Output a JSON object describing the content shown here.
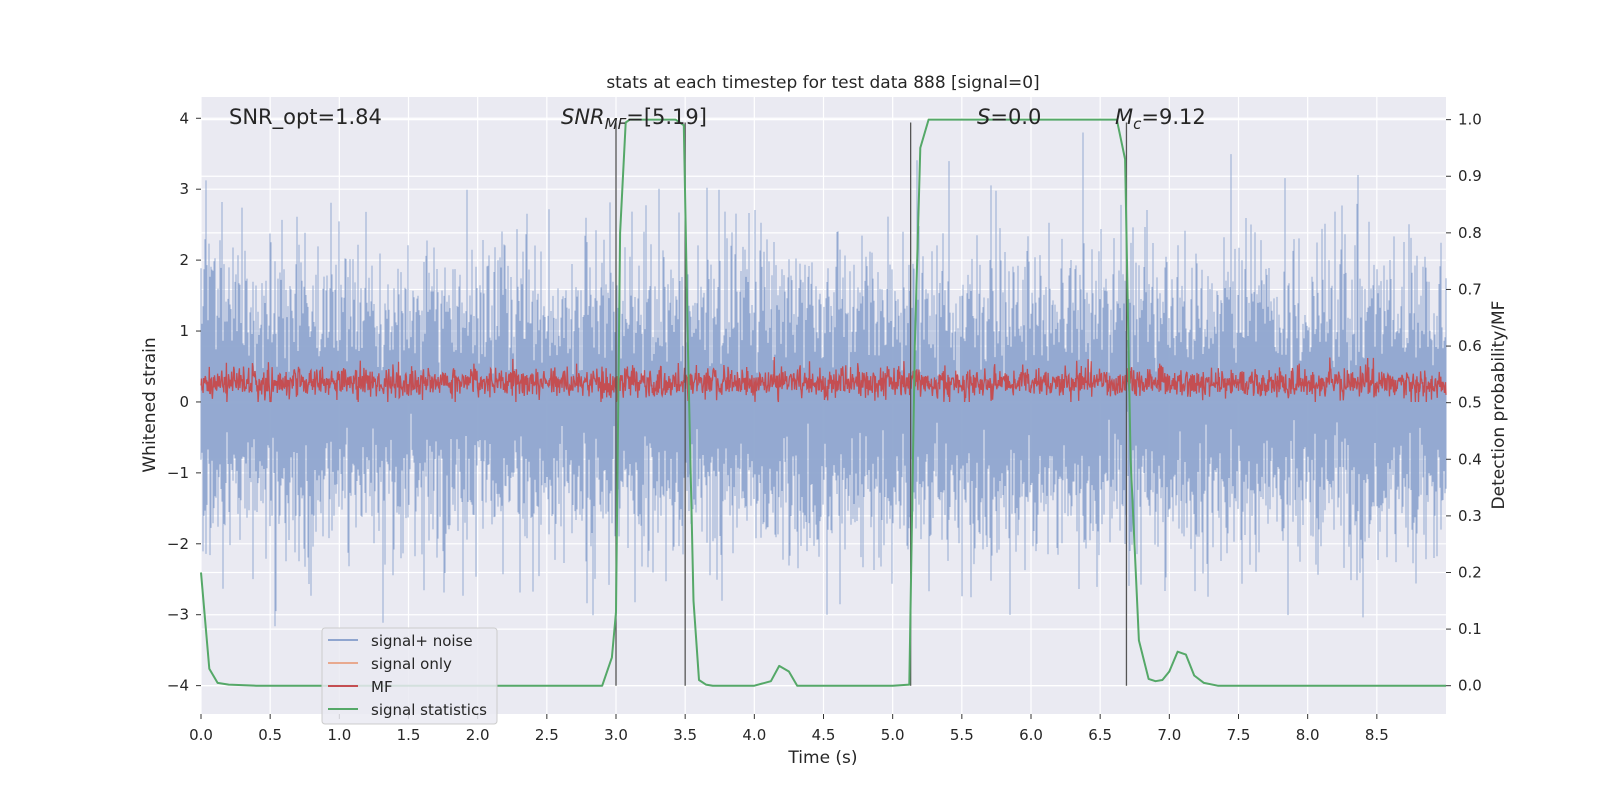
{
  "chart_data": {
    "type": "line",
    "title": "stats at each timestep for test data 888 [signal=0]",
    "xlabel": "Time (s)",
    "ylabel": "Whitened strain",
    "y2label": "Detection probability/MF",
    "xlim": [
      0.0,
      9.0
    ],
    "ylim": [
      -4.4,
      4.3
    ],
    "y2lim": [
      -0.05,
      1.04
    ],
    "xticks": [
      "0.0",
      "0.5",
      "1.0",
      "1.5",
      "2.0",
      "2.5",
      "3.0",
      "3.5",
      "4.0",
      "4.5",
      "5.0",
      "5.5",
      "6.0",
      "6.5",
      "7.0",
      "7.5",
      "8.0",
      "8.5"
    ],
    "yticks": [
      "4",
      "3",
      "2",
      "1",
      "0",
      "−1",
      "−2",
      "−3",
      "−4"
    ],
    "y2ticks": [
      "1.0",
      "0.9",
      "0.8",
      "0.7",
      "0.6",
      "0.5",
      "0.4",
      "0.3",
      "0.2",
      "0.1",
      "0.0"
    ],
    "grid": true,
    "legend_position": "lower-left",
    "annotations": {
      "snr_opt": "SNR_opt=1.84",
      "snr_mf_sym": "SNR",
      "snr_mf_sub": "MF",
      "snr_mf_val": "=[5.19]",
      "s_sym": "S",
      "s_val": "=0.0",
      "mc_sym": "M",
      "mc_sub": "c",
      "mc_val": "=9.12"
    },
    "vertical_lines": [
      3.0,
      3.5,
      5.13,
      6.69
    ],
    "series": [
      {
        "name": "signal+ noise",
        "color": "#8fa5cf",
        "axis": "left",
        "amplitude_envelope": [
          -3.8,
          3.8
        ]
      },
      {
        "name": "signal only",
        "color": "#e8a98f",
        "axis": "left",
        "values": []
      },
      {
        "name": "MF",
        "color": "#c44e52",
        "axis": "left",
        "range_approx": [
          0.0,
          0.8
        ]
      },
      {
        "name": "signal statistics",
        "color": "#55a868",
        "axis": "right",
        "x": [
          0.0,
          0.06,
          0.12,
          0.2,
          0.4,
          1.0,
          2.0,
          2.9,
          2.97,
          3.0,
          3.03,
          3.07,
          3.1,
          3.3,
          3.43,
          3.49,
          3.52,
          3.56,
          3.6,
          3.65,
          3.7,
          4.0,
          4.12,
          4.18,
          4.25,
          4.31,
          4.5,
          5.0,
          5.12,
          5.16,
          5.2,
          5.26,
          5.5,
          6.0,
          6.5,
          6.62,
          6.68,
          6.72,
          6.78,
          6.85,
          6.9,
          6.95,
          7.0,
          7.06,
          7.12,
          7.18,
          7.25,
          7.35,
          8.0,
          9.0
        ],
        "values": [
          0.2,
          0.03,
          0.005,
          0.002,
          0.0,
          0.0,
          0.0,
          0.0,
          0.05,
          0.13,
          0.8,
          0.995,
          1.0,
          1.0,
          1.0,
          0.99,
          0.6,
          0.15,
          0.01,
          0.002,
          0.0,
          0.0,
          0.008,
          0.035,
          0.025,
          0.0,
          0.0,
          0.0,
          0.002,
          0.6,
          0.95,
          1.0,
          1.0,
          1.0,
          1.0,
          1.0,
          0.93,
          0.4,
          0.08,
          0.012,
          0.008,
          0.01,
          0.025,
          0.06,
          0.055,
          0.018,
          0.005,
          0.0,
          0.0,
          0.0
        ]
      }
    ]
  }
}
